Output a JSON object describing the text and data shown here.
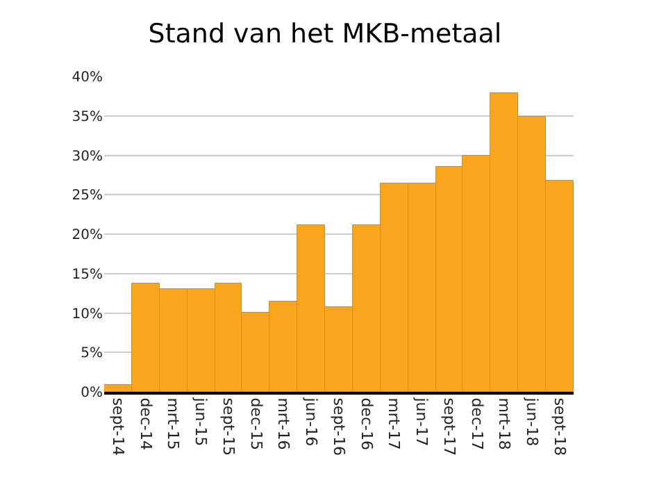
{
  "chart_data": {
    "type": "bar",
    "title": "Stand van het MKB-metaal",
    "categories": [
      "sept-14",
      "dec-14",
      "mrt-15",
      "jun-15",
      "sept-15",
      "dec-15",
      "mrt-16",
      "jun-16",
      "sept-16",
      "dec-16",
      "mrt-17",
      "jun-17",
      "sept-17",
      "dec-17",
      "mrt-18",
      "jun-18",
      "sept-18"
    ],
    "values": [
      0.8,
      13.8,
      13.1,
      13.1,
      13.8,
      10.0,
      11.5,
      21.2,
      10.8,
      21.2,
      26.5,
      26.5,
      28.6,
      30.0,
      37.8,
      34.9,
      26.8
    ],
    "color": "#f9a61e",
    "ylim": [
      0,
      40
    ],
    "yticks": [
      {
        "value": 0,
        "label": "0%"
      },
      {
        "value": 5,
        "label": "5%"
      },
      {
        "value": 10,
        "label": "10%"
      },
      {
        "value": 15,
        "label": "15%"
      },
      {
        "value": 20,
        "label": "20%"
      },
      {
        "value": 25,
        "label": "25%"
      },
      {
        "value": 30,
        "label": "30%"
      },
      {
        "value": 35,
        "label": "35%"
      },
      {
        "value": 40,
        "label": "40%"
      }
    ],
    "grid": "y"
  }
}
